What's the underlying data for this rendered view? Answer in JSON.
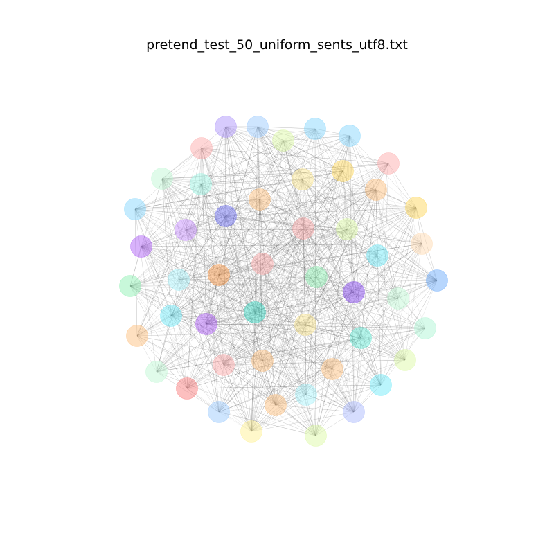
{
  "figure": {
    "title": "pretend_test_50_uniform_sents_utf8.txt"
  },
  "graph": {
    "node_count": 50,
    "node_colors": [
      "#a78bfa",
      "#93c5fd",
      "#d9f99d",
      "#7dd3fc",
      "#7dd3fc",
      "#fca5a5",
      "#fca5a5",
      "#bbf7d0",
      "#99f6e4",
      "#fde68a",
      "#fcd34d",
      "#fdba74",
      "#7dd3fc",
      "#fcd34d",
      "#6366f1",
      "#fdba74",
      "#c084fc",
      "#fca5a5",
      "#d9f99d",
      "#a855f7",
      "#fed7aa",
      "#fca5a5",
      "#86efac",
      "#67e8f9",
      "#fb923c",
      "#a5f3fc",
      "#60a5fa",
      "#7c3aed",
      "#86efac",
      "#bbf7d0",
      "#2dd4bf",
      "#a855f7",
      "#67e8f9",
      "#fde68a",
      "#5eead4",
      "#a7f3d0",
      "#fdba74",
      "#d9f99d",
      "#fca5a5",
      "#fdba74",
      "#fdba74",
      "#bbf7d0",
      "#67e8f9",
      "#f87171",
      "#93c5fd",
      "#fdba74",
      "#a5f3fc",
      "#a5b4fc",
      "#fef08a",
      "#d9f99d"
    ],
    "node_opacity": 0.45,
    "edge_color": "#555555"
  }
}
